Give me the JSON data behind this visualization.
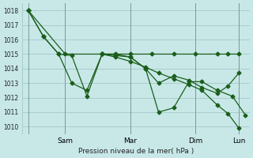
{
  "background_color": "#c8e8e8",
  "grid_color": "#aacccc",
  "line_color": "#1a5e1a",
  "marker_color": "#1a5e1a",
  "xlabel_text": "Pression niveau de la mer( hPa )",
  "ylim": [
    1009.5,
    1018.5
  ],
  "yticks": [
    1010,
    1011,
    1012,
    1013,
    1014,
    1015,
    1016,
    1017,
    1018
  ],
  "day_ticks_x": [
    0.0,
    2.0,
    5.0,
    8.0,
    10.0
  ],
  "day_tick_labels": [
    "",
    "Sam",
    "Mar",
    "Dim",
    "Lun"
  ],
  "s1_x": [
    0.3,
    1.0,
    1.7,
    2.3,
    3.0,
    3.7,
    4.3,
    5.0,
    5.7,
    6.3,
    7.0,
    7.7,
    8.3,
    9.0,
    9.7,
    10.3
  ],
  "s1_y": [
    1018.0,
    1016.2,
    1015.0,
    1014.9,
    1012.1,
    1015.0,
    1014.9,
    1014.8,
    1014.0,
    1011.0,
    1011.3,
    1013.1,
    1013.1,
    1012.5,
    1012.1,
    1010.8
  ],
  "s2_x": [
    0.3,
    1.0,
    1.7,
    2.3,
    3.0,
    3.7,
    4.3,
    5.0,
    5.7,
    6.3,
    7.0,
    7.7,
    8.3,
    9.0,
    9.5,
    10.0
  ],
  "s2_y": [
    1018.0,
    1016.2,
    1015.0,
    1013.0,
    1012.5,
    1015.0,
    1015.0,
    1014.8,
    1014.0,
    1013.0,
    1013.5,
    1013.2,
    1012.7,
    1012.3,
    1012.8,
    1013.7
  ],
  "s3_x": [
    0.3,
    2.0,
    3.7,
    5.0,
    6.0,
    7.0,
    8.0,
    9.0,
    9.5,
    10.0
  ],
  "s3_y": [
    1018.0,
    1015.0,
    1015.0,
    1015.0,
    1015.0,
    1015.0,
    1015.0,
    1015.0,
    1015.0,
    1015.0
  ],
  "s4_x": [
    3.7,
    4.3,
    5.0,
    5.7,
    6.3,
    7.0,
    7.7,
    8.3,
    9.0,
    9.5,
    10.0
  ],
  "s4_y": [
    1015.0,
    1014.8,
    1014.5,
    1014.1,
    1013.7,
    1013.3,
    1012.9,
    1012.5,
    1011.5,
    1010.9,
    1009.9
  ],
  "vlines_x": [
    0.3,
    2.0,
    5.0,
    8.0,
    10.0
  ],
  "xlim": [
    0.0,
    10.5
  ]
}
